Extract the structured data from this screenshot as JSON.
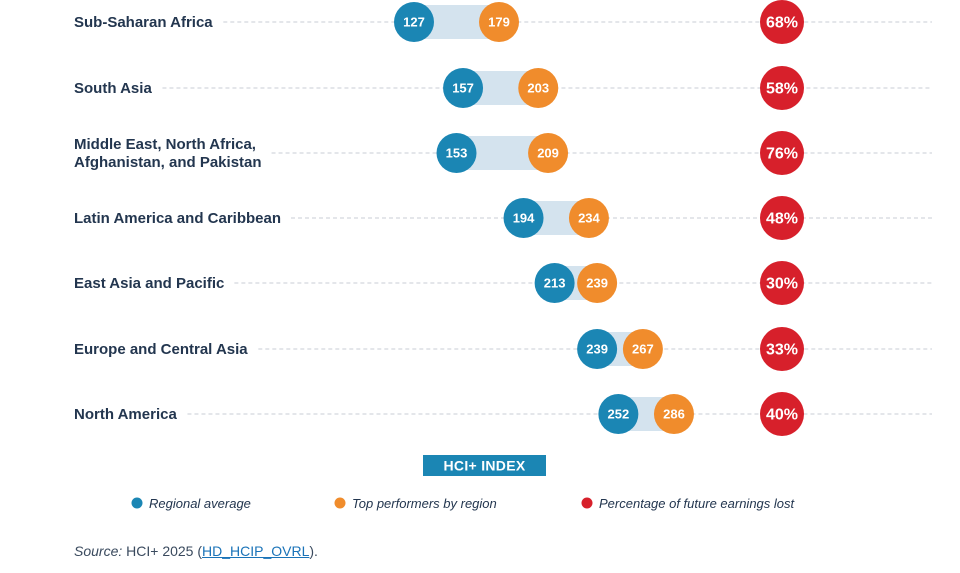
{
  "chart_data": {
    "type": "dumbbell",
    "axis_title": "HCI+ INDEX",
    "categories": [
      [
        "Sub-Saharan Africa"
      ],
      [
        "South Asia"
      ],
      [
        "Middle East, North Africa,",
        "Afghanistan, and Pakistan"
      ],
      [
        "Latin America and Caribbean"
      ],
      [
        "East Asia and Pacific"
      ],
      [
        "Europe and Central Asia"
      ],
      [
        "North America"
      ]
    ],
    "series": [
      {
        "name": "Regional average",
        "values": [
          127,
          157,
          153,
          194,
          213,
          239,
          252
        ]
      },
      {
        "name": "Top performers by region",
        "values": [
          179,
          203,
          209,
          234,
          239,
          267,
          286
        ]
      },
      {
        "name": "Percentage of future earnings lost",
        "values": [
          "68%",
          "58%",
          "76%",
          "48%",
          "30%",
          "33%",
          "40%"
        ]
      }
    ],
    "colors": {
      "regional": "#1b86b4",
      "top": "#f08c2c",
      "loss": "#d7202b",
      "connector": "#d4e3ee",
      "axis_title_bg": "#1b86b4",
      "label_text": "#23364f"
    }
  },
  "source": {
    "label": "Source:",
    "text": "HCI+ 2025 (",
    "link": "HD_HCIP_OVRL",
    "end": ")."
  }
}
